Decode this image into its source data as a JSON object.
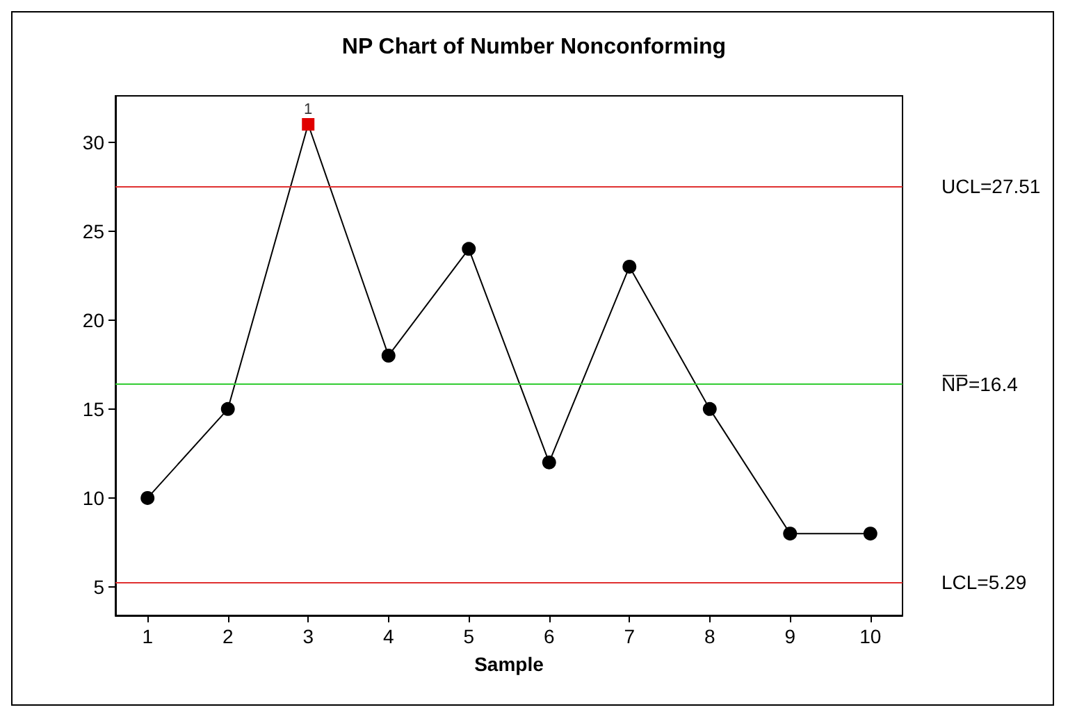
{
  "chart_data": {
    "type": "line",
    "title": "NP Chart of Number Nonconforming",
    "xlabel": "Sample",
    "x": [
      1,
      2,
      3,
      4,
      5,
      6,
      7,
      8,
      9,
      10
    ],
    "series": [
      {
        "color": "#000000",
        "colors": [
          "#000000",
          "#000000",
          "#e00000",
          "#000000",
          "#000000",
          "#000000",
          "#000000",
          "#000000",
          "#000000",
          "#000000"
        ],
        "values": [
          10,
          15,
          31,
          18,
          24,
          12,
          23,
          15,
          8,
          8
        ]
      }
    ],
    "xlim": [
      0.6,
      10.4
    ],
    "xticks": [
      1,
      2,
      3,
      4,
      5,
      6,
      7,
      8,
      9,
      10
    ],
    "ylim": [
      3.4,
      32.6
    ],
    "yticks": [
      5,
      10,
      15,
      20,
      25,
      30
    ],
    "ref_lines": [
      {
        "axis": "y",
        "value": 27.51,
        "label": "UCL=27.51",
        "color": "#e03030"
      },
      {
        "axis": "y",
        "value": 16.4,
        "label": "N̅P̅=16.4",
        "color": "#33cc33"
      },
      {
        "axis": "y",
        "value": 5.29,
        "label": "LCL=5.29",
        "color": "#e03030"
      }
    ],
    "annotations": [
      {
        "text": "1",
        "x": 3,
        "y": 31
      }
    ],
    "grid": false,
    "marker": "circle",
    "line_style": "solid"
  }
}
